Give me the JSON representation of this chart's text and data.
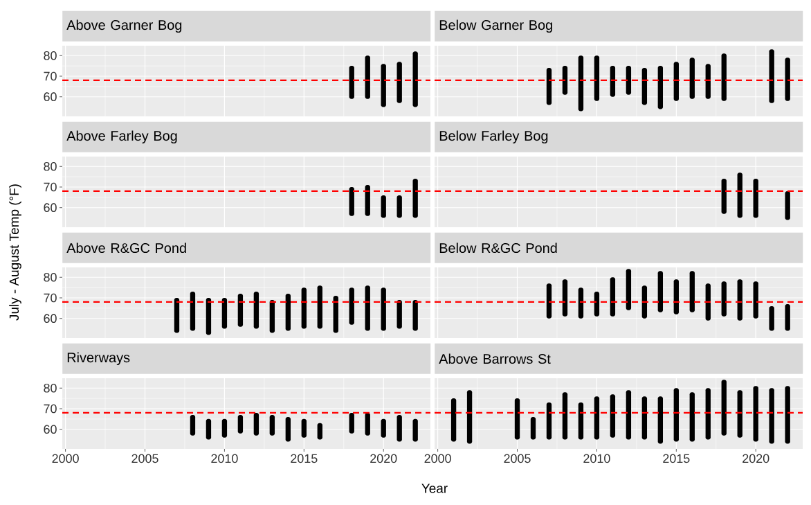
{
  "chart_data": [
    {
      "type": "bar",
      "title": "Above Garner Bog",
      "ylabel": "July - August Temp (°F)",
      "color": "#000000",
      "grid": true,
      "tick_labels": "y",
      "xlim": [
        1999.8,
        2022.95
      ],
      "ylim": [
        50.5,
        84.8
      ],
      "xticks": [
        2000,
        2005,
        2010,
        2015,
        2020
      ],
      "yticks": [
        60,
        70,
        80
      ],
      "ref_lines": [
        {
          "axis": "y",
          "value": 68,
          "color": "#ff0000",
          "line_style": "dashed"
        }
      ],
      "x": [
        2018,
        2019,
        2020,
        2021,
        2022
      ],
      "base": [
        59,
        59,
        55,
        57,
        55
      ],
      "values": [
        16,
        21,
        21,
        20,
        27
      ]
    },
    {
      "type": "bar",
      "title": "Below Garner Bog",
      "color": "#000000",
      "grid": true,
      "tick_labels": false,
      "xlim": [
        1999.8,
        2022.95
      ],
      "ylim": [
        50.5,
        84.8
      ],
      "xticks": [
        2000,
        2005,
        2010,
        2015,
        2020
      ],
      "yticks": [
        60,
        70,
        80
      ],
      "ref_lines": [
        {
          "axis": "y",
          "value": 68,
          "color": "#ff0000",
          "line_style": "dashed"
        }
      ],
      "x": [
        2007,
        2008,
        2009,
        2010,
        2011,
        2012,
        2013,
        2014,
        2015,
        2016,
        2017,
        2018,
        2021,
        2022
      ],
      "base": [
        56,
        61,
        53,
        58,
        60,
        61,
        56,
        54,
        58,
        59,
        59,
        58,
        57,
        58
      ],
      "values": [
        18,
        14,
        27,
        22,
        15,
        14,
        18,
        21,
        19,
        20,
        17,
        23,
        26,
        21
      ]
    },
    {
      "type": "bar",
      "title": "Above Farley Bog",
      "color": "#000000",
      "grid": true,
      "tick_labels": "y",
      "xlim": [
        1999.8,
        2022.95
      ],
      "ylim": [
        50.5,
        84.8
      ],
      "xticks": [
        2000,
        2005,
        2010,
        2015,
        2020
      ],
      "yticks": [
        60,
        70,
        80
      ],
      "ref_lines": [
        {
          "axis": "y",
          "value": 68,
          "color": "#ff0000",
          "line_style": "dashed"
        }
      ],
      "x": [
        2018,
        2019,
        2020,
        2021,
        2022
      ],
      "base": [
        56,
        56,
        55,
        55,
        55
      ],
      "values": [
        14,
        15,
        11,
        11,
        19
      ]
    },
    {
      "type": "bar",
      "title": "Below Farley Bog",
      "color": "#000000",
      "grid": true,
      "tick_labels": false,
      "xlim": [
        1999.8,
        2022.95
      ],
      "ylim": [
        50.5,
        84.8
      ],
      "xticks": [
        2000,
        2005,
        2010,
        2015,
        2020
      ],
      "yticks": [
        60,
        70,
        80
      ],
      "ref_lines": [
        {
          "axis": "y",
          "value": 68,
          "color": "#ff0000",
          "line_style": "dashed"
        }
      ],
      "x": [
        2018,
        2019,
        2020,
        2022
      ],
      "base": [
        57,
        55,
        55,
        54
      ],
      "values": [
        17,
        22,
        19,
        14
      ]
    },
    {
      "type": "bar",
      "title": "Above R&GC Pond",
      "color": "#000000",
      "grid": true,
      "tick_labels": "y",
      "xlim": [
        1999.8,
        2022.95
      ],
      "ylim": [
        50.5,
        84.8
      ],
      "xticks": [
        2000,
        2005,
        2010,
        2015,
        2020
      ],
      "yticks": [
        60,
        70,
        80
      ],
      "ref_lines": [
        {
          "axis": "y",
          "value": 68,
          "color": "#ff0000",
          "line_style": "dashed"
        }
      ],
      "x": [
        2007,
        2008,
        2009,
        2010,
        2011,
        2012,
        2013,
        2014,
        2015,
        2016,
        2017,
        2018,
        2019,
        2020,
        2021,
        2022
      ],
      "base": [
        53,
        54,
        52,
        55,
        56,
        55,
        53,
        54,
        55,
        55,
        53,
        57,
        54,
        54,
        55,
        54
      ],
      "values": [
        17,
        19,
        18,
        15,
        16,
        18,
        16,
        18,
        20,
        21,
        18,
        18,
        22,
        21,
        14,
        15
      ]
    },
    {
      "type": "bar",
      "title": "Below R&GC Pond",
      "color": "#000000",
      "grid": true,
      "tick_labels": false,
      "xlim": [
        1999.8,
        2022.95
      ],
      "ylim": [
        50.5,
        84.8
      ],
      "xticks": [
        2000,
        2005,
        2010,
        2015,
        2020
      ],
      "yticks": [
        60,
        70,
        80
      ],
      "ref_lines": [
        {
          "axis": "y",
          "value": 68,
          "color": "#ff0000",
          "line_style": "dashed"
        }
      ],
      "x": [
        2007,
        2008,
        2009,
        2010,
        2011,
        2012,
        2013,
        2014,
        2015,
        2016,
        2017,
        2018,
        2019,
        2020,
        2021,
        2022
      ],
      "base": [
        60,
        61,
        60,
        61,
        61,
        64,
        60,
        63,
        62,
        63,
        59,
        61,
        59,
        60,
        54,
        54
      ],
      "values": [
        17,
        18,
        15,
        12,
        19,
        20,
        16,
        20,
        17,
        20,
        18,
        17,
        20,
        18,
        12,
        13
      ]
    },
    {
      "type": "bar",
      "title": "Riverways",
      "color": "#000000",
      "grid": true,
      "xlim": [
        1999.8,
        2022.95
      ],
      "ylim": [
        50.5,
        84.8
      ],
      "xticks": [
        2000,
        2005,
        2010,
        2015,
        2020
      ],
      "yticks": [
        60,
        70,
        80
      ],
      "ref_lines": [
        {
          "axis": "y",
          "value": 68,
          "color": "#ff0000",
          "line_style": "dashed"
        }
      ],
      "x": [
        2008,
        2009,
        2010,
        2011,
        2012,
        2013,
        2014,
        2015,
        2016,
        2018,
        2019,
        2020,
        2021,
        2022
      ],
      "base": [
        57,
        55,
        56,
        58,
        57,
        57,
        54,
        56,
        55,
        58,
        57,
        56,
        54,
        54
      ],
      "values": [
        10,
        10,
        9,
        9,
        11,
        10,
        12,
        9,
        8,
        10,
        11,
        9,
        13,
        11
      ]
    },
    {
      "type": "bar",
      "title": "Above Barrows St",
      "xlabel": "Year",
      "color": "#000000",
      "grid": true,
      "tick_labels": "x",
      "xlim": [
        1999.8,
        2022.95
      ],
      "ylim": [
        50.5,
        84.8
      ],
      "xticks": [
        2000,
        2005,
        2010,
        2015,
        2020
      ],
      "yticks": [
        60,
        70,
        80
      ],
      "ref_lines": [
        {
          "axis": "y",
          "value": 68,
          "color": "#ff0000",
          "line_style": "dashed"
        }
      ],
      "x": [
        2001,
        2002,
        2005,
        2006,
        2007,
        2008,
        2009,
        2010,
        2011,
        2012,
        2013,
        2014,
        2015,
        2016,
        2017,
        2018,
        2019,
        2020,
        2021,
        2022
      ],
      "base": [
        54,
        53,
        55,
        55,
        55,
        55,
        55,
        55,
        56,
        55,
        55,
        53,
        54,
        54,
        55,
        57,
        56,
        54,
        53,
        53
      ],
      "values": [
        21,
        26,
        20,
        11,
        18,
        23,
        18,
        21,
        21,
        24,
        21,
        23,
        26,
        24,
        25,
        27,
        23,
        27,
        27,
        28
      ]
    }
  ]
}
